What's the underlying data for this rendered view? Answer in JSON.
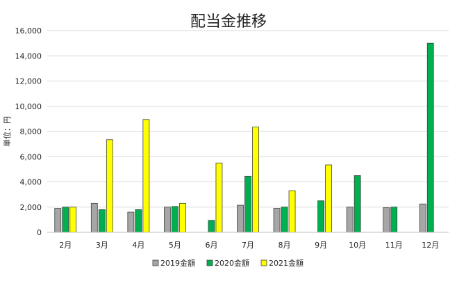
{
  "chart_data": {
    "type": "bar",
    "title": "配当金推移",
    "xlabel": "",
    "ylabel": "単位：円",
    "ylim": [
      0,
      16000
    ],
    "yticks": [
      0,
      2000,
      4000,
      6000,
      8000,
      10000,
      12000,
      14000,
      16000
    ],
    "ytick_labels": [
      "0",
      "2,000",
      "4,000",
      "6,000",
      "8,000",
      "10,000",
      "12,000",
      "14,000",
      "16,000"
    ],
    "grid": true,
    "legend_position": "bottom",
    "categories": [
      "2月",
      "3月",
      "4月",
      "5月",
      "6月",
      "7月",
      "8月",
      "9月",
      "10月",
      "11月",
      "12月"
    ],
    "series": [
      {
        "name": "2019金額",
        "color": "#a6a6a6",
        "values": [
          1900,
          2300,
          1600,
          2000,
          null,
          2150,
          1900,
          null,
          2000,
          1950,
          2250
        ]
      },
      {
        "name": "2020金額",
        "color": "#00b050",
        "values": [
          2000,
          1800,
          1800,
          2050,
          950,
          4450,
          2000,
          2500,
          4500,
          2000,
          15000
        ]
      },
      {
        "name": "2021金額",
        "color": "#ffff00",
        "values": [
          2000,
          7350,
          8950,
          2300,
          5500,
          8350,
          3300,
          5350,
          null,
          null,
          null
        ]
      }
    ]
  }
}
